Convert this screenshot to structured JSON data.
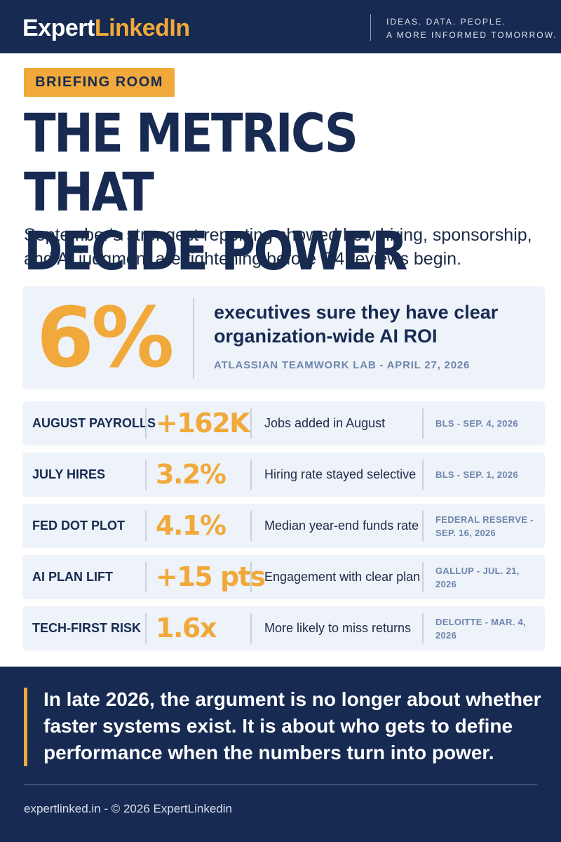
{
  "header": {
    "brand_part1": "Expert",
    "brand_part2": "LinkedIn",
    "tagline_line1": "IDEAS. DATA. PEOPLE.",
    "tagline_line2": "A MORE INFORMED TOMORROW."
  },
  "badge": "BRIEFING ROOM",
  "headline": {
    "line1": "THE METRICS THAT",
    "line2": "DECIDE POWER"
  },
  "subhead": "September's strongest reporting showed how hiring, sponsorship, and AI judgment are tightening before Q4 reviews begin.",
  "hero": {
    "value": "6%",
    "text": "executives sure they have clear organization-wide AI ROI",
    "source": "ATLASSIAN TEAMWORK LAB - APRIL 27, 2026"
  },
  "stats": [
    {
      "label": "AUGUST PAYROLLS",
      "value": "+162K",
      "description": "Jobs added in August",
      "source": "BLS - SEP. 4, 2026"
    },
    {
      "label": "JULY HIRES",
      "value": "3.2%",
      "description": "Hiring rate stayed selective",
      "source": "BLS - SEP. 1, 2026"
    },
    {
      "label": "FED DOT PLOT",
      "value": "4.1%",
      "description": "Median year-end funds rate",
      "source": "FEDERAL RESERVE - SEP. 16, 2026"
    },
    {
      "label": "AI PLAN LIFT",
      "value": "+15 pts",
      "description": "Engagement with clear plan",
      "source": "GALLUP - JUL. 21, 2026"
    },
    {
      "label": "TECH-FIRST RISK",
      "value": "1.6x",
      "description": "More likely to miss returns",
      "source": "DELOITTE - MAR. 4, 2026"
    }
  ],
  "footer": {
    "quote": "In late 2026, the argument is no longer about whether faster systems exist. It is about who gets to define performance when the numbers turn into power.",
    "credit": "expertlinked.in - © 2026 ExpertLinkedin"
  },
  "colors": {
    "navy": "#162a52",
    "accent": "#f0a93a",
    "card": "#eef2f9",
    "muted": "#6e86ad"
  }
}
